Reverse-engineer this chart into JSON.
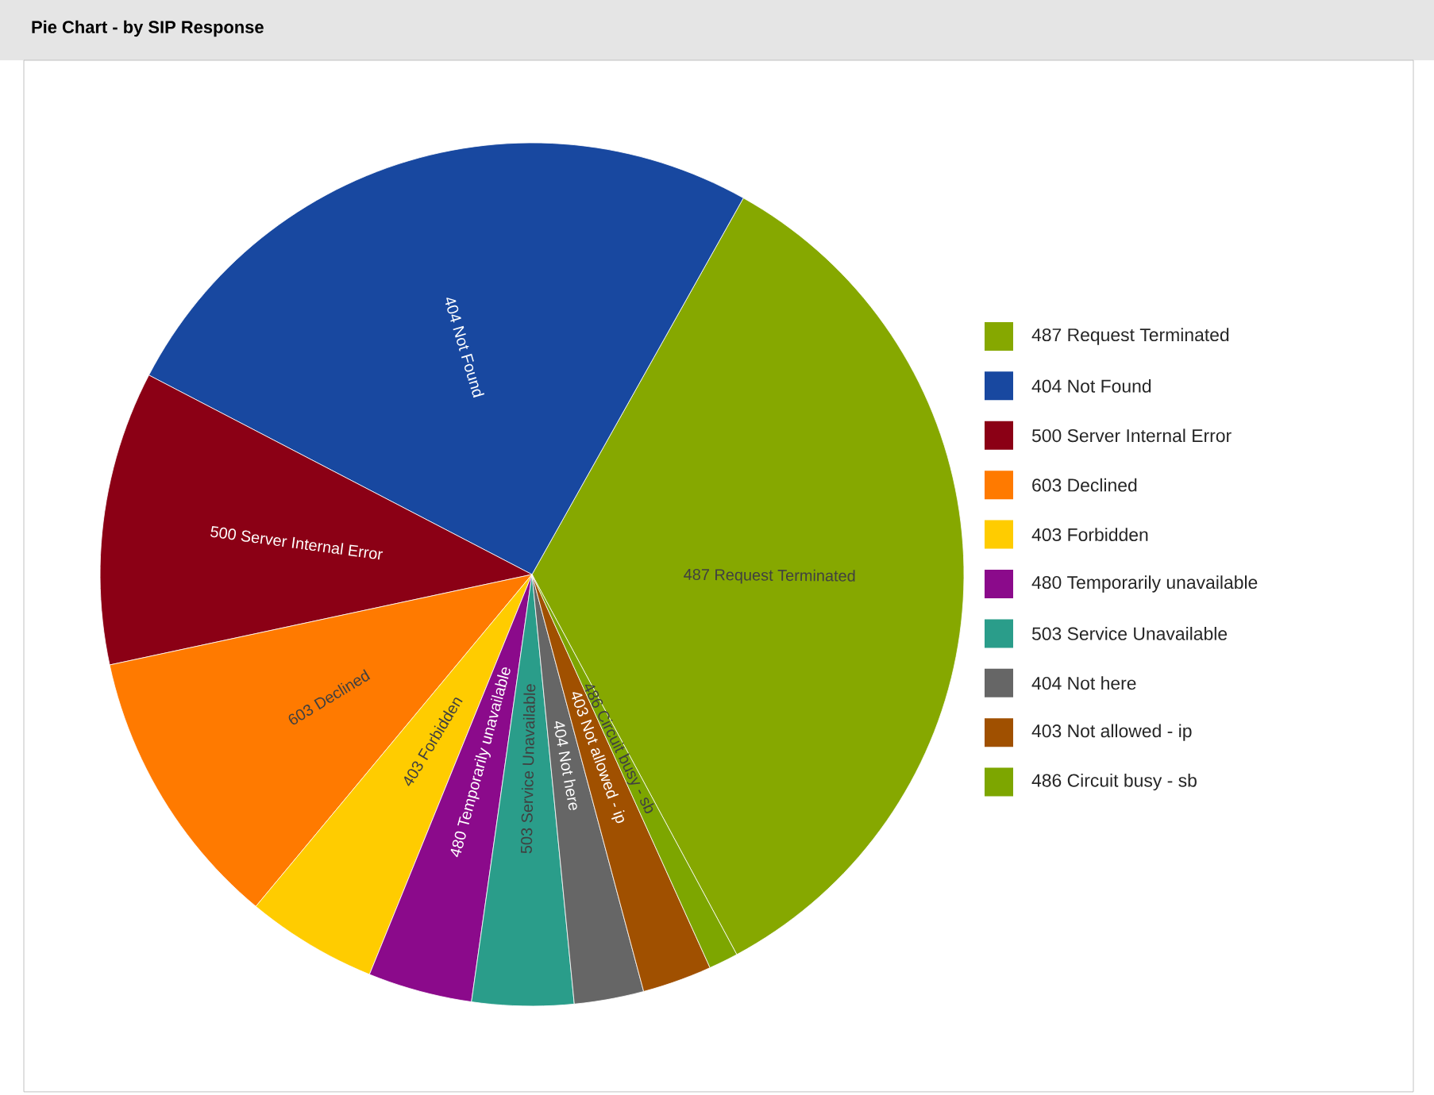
{
  "chart_data": {
    "type": "pie",
    "title": "Pie Chart - by SIP Response",
    "categories": [
      "487 Request Terminated",
      "404 Not Found",
      "500 Server Internal Error",
      "603 Declined",
      "403 Forbidden",
      "480 Temporarily unavailable",
      "503 Service Unavailable",
      "404 Not here",
      "403 Not allowed - ip",
      "486 Circuit busy - sb"
    ],
    "values": [
      34.0,
      25.5,
      11.0,
      10.6,
      4.9,
      3.9,
      3.8,
      2.6,
      2.6,
      1.1
    ],
    "colors": [
      "#86a800",
      "#1848a0",
      "#8b0015",
      "#ff7a00",
      "#ffcc00",
      "#8b0a8b",
      "#2a9d8a",
      "#666666",
      "#a05000",
      "#7da600"
    ],
    "legend": "right"
  }
}
